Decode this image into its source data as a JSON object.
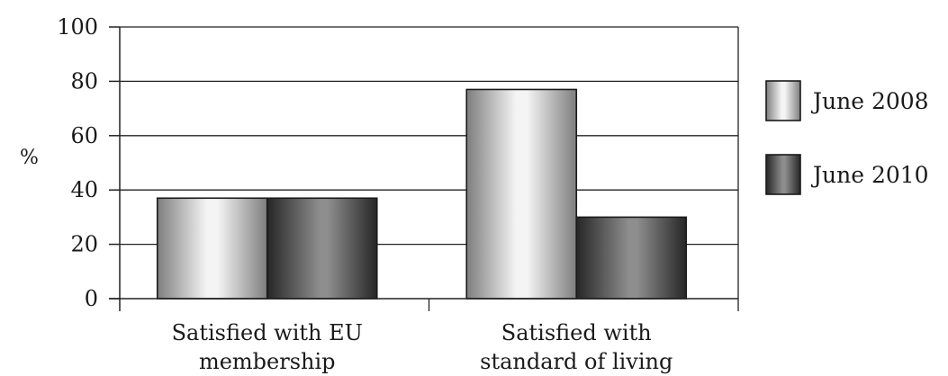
{
  "chart_data": {
    "type": "bar",
    "title": "",
    "xlabel": "",
    "ylabel": "%",
    "ylim": [
      0,
      100
    ],
    "yticks": [
      0,
      20,
      40,
      60,
      80,
      100
    ],
    "grid": true,
    "legend_position": "right",
    "categories": [
      [
        "Satisfied with EU",
        "membership"
      ],
      [
        "Satisfied with",
        "standard of living"
      ]
    ],
    "series": [
      {
        "name": "June 2008",
        "values": [
          37,
          77
        ],
        "color": "light-silver-gradient"
      },
      {
        "name": "June 2010",
        "values": [
          37,
          30
        ],
        "color": "dark-gray-gradient"
      }
    ]
  }
}
